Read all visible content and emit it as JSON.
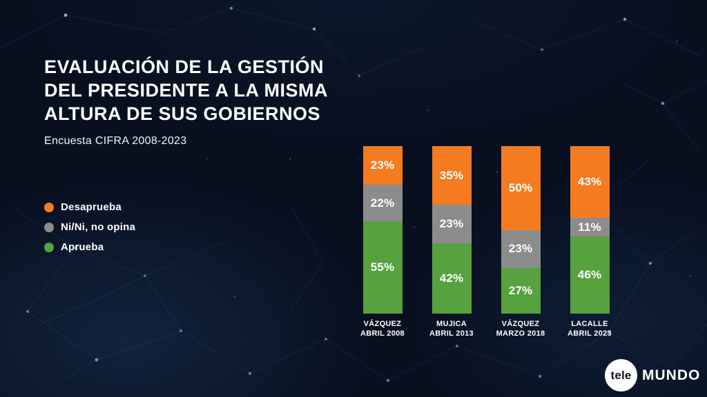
{
  "colors": {
    "background": "#081020",
    "text": "#ffffff"
  },
  "header": {
    "title_lines": [
      "EVALUACIÓN DE LA GESTIÓN",
      "DEL PRESIDENTE A LA MISMA",
      "ALTURA DE SUS GOBIERNOS"
    ],
    "subtitle": "Encuesta CIFRA 2008-2023"
  },
  "chart_data": {
    "type": "bar",
    "stacked": true,
    "orientation": "vertical",
    "title": "Evaluación de la gestión del presidente a la misma altura de sus gobiernos",
    "subtitle": "Encuesta CIFRA 2008-2023",
    "categories": [
      {
        "name": "VÁZQUEZ",
        "period": "ABRIL 2008"
      },
      {
        "name": "MUJICA",
        "period": "ABRIL 2013"
      },
      {
        "name": "VÁZQUEZ",
        "period": "MARZO 2018"
      },
      {
        "name": "LACALLE",
        "period": "ABRIL 2023"
      }
    ],
    "series": [
      {
        "name": "Desaprueba",
        "color": "#f47b20",
        "values": [
          23,
          35,
          50,
          43
        ]
      },
      {
        "name": "Ni/Ni, no opina",
        "color": "#8c8c8c",
        "values": [
          22,
          23,
          23,
          11
        ]
      },
      {
        "name": "Aprueba",
        "color": "#57a13e",
        "values": [
          55,
          42,
          27,
          46
        ]
      }
    ],
    "value_suffix": "%",
    "ylim": [
      0,
      100
    ],
    "grid": false,
    "legend_position": "left"
  },
  "logo": {
    "circle_text": "tele",
    "wordmark": "MUNDO"
  }
}
